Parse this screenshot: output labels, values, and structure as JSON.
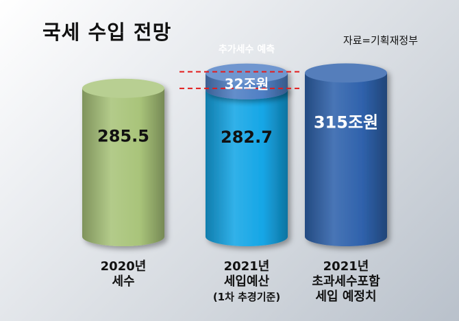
{
  "title": "국세 수입 전망",
  "source": "자료=기획재정부",
  "chart_data": {
    "type": "bar",
    "style": "3d-cylinder",
    "title": "국세 수입 전망",
    "ylim": [
      0,
      360
    ],
    "categories": [
      {
        "lines": [
          "2020년",
          "세수"
        ]
      },
      {
        "lines": [
          "2021년",
          "세입예산",
          "(1차 추경기준)"
        ]
      },
      {
        "lines": [
          "2021년",
          "초과세수포함",
          "세입 예정치"
        ]
      }
    ],
    "bars": [
      {
        "base_value": 285.5,
        "base_label": "285.5",
        "color": "#a9c47a"
      },
      {
        "base_value": 282.7,
        "base_label": "282.7",
        "color": "#15a6e6",
        "extra_value": 32,
        "extra_label": "32조원",
        "extra_color": "#4f7fc4",
        "extra_title": "추가세수 예측"
      },
      {
        "base_value": 315,
        "base_label": "315조원",
        "color": "#2f62ac"
      }
    ]
  }
}
